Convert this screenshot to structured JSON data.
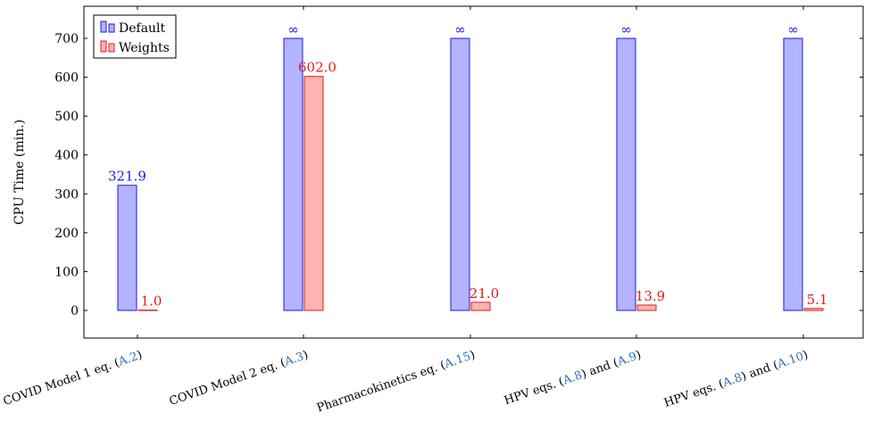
{
  "chart_data": {
    "type": "bar",
    "ylabel": "CPU Time (min.)",
    "ylim": [
      -70,
      770
    ],
    "yticks": [
      0,
      100,
      200,
      300,
      400,
      500,
      600,
      700
    ],
    "grid": false,
    "legend_position": "top-left",
    "categories": [
      {
        "text": "COVID Model 1 eq. (",
        "refs": [
          "A.2"
        ],
        "joiners": [],
        "suffix": ")"
      },
      {
        "text": "COVID Model 2 eq. (",
        "refs": [
          "A.3"
        ],
        "joiners": [],
        "suffix": ")"
      },
      {
        "text": "Pharmacokinetics eq. (",
        "refs": [
          "A.15"
        ],
        "joiners": [],
        "suffix": ")"
      },
      {
        "text": "HPV eqs. (",
        "refs": [
          "A.8",
          "A.9"
        ],
        "joiners": [
          ") and ("
        ],
        "suffix": ")"
      },
      {
        "text": "HPV eqs. (",
        "refs": [
          "A.8",
          "A.10"
        ],
        "joiners": [
          ") and ("
        ],
        "suffix": ")"
      }
    ],
    "series": [
      {
        "name": "Default",
        "values": [
          321.9,
          null,
          null,
          null,
          null
        ],
        "labels": [
          "321.9",
          "∞",
          "∞",
          "∞",
          "∞"
        ],
        "fill": "#b3b3ff",
        "stroke": "#1a1ae6",
        "label_color": "#1a1ae6"
      },
      {
        "name": "Weights",
        "values": [
          1.0,
          602.0,
          21.0,
          13.9,
          5.1
        ],
        "labels": [
          "1.0",
          "602.0",
          "21.0",
          "13.9",
          "5.1"
        ],
        "fill": "#ffb3b3",
        "stroke": "#e61a1a",
        "label_color": "#e61a1a"
      }
    ],
    "infinity_display_value": 700
  }
}
